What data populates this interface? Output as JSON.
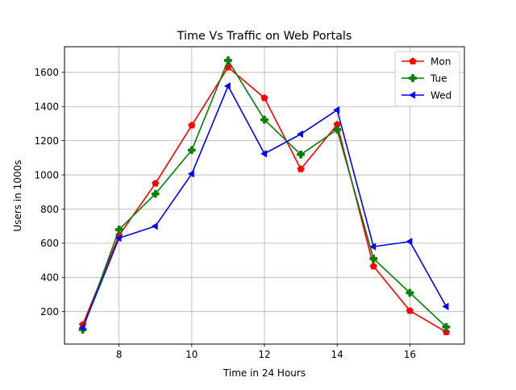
{
  "chart_data": {
    "type": "line",
    "title": "Time Vs Traffic on Web Portals",
    "xlabel": "Time in 24 Hours",
    "ylabel": "Users in 1000s",
    "x": [
      7,
      8,
      9,
      10,
      11,
      12,
      13,
      14,
      15,
      16,
      17
    ],
    "xlim": [
      6.5,
      17.5
    ],
    "ylim": [
      10,
      1750
    ],
    "xticks": [
      8,
      10,
      12,
      14,
      16
    ],
    "yticks": [
      200,
      400,
      600,
      800,
      1000,
      1200,
      1400,
      1600
    ],
    "grid": true,
    "legend_position": "top-right",
    "series": [
      {
        "name": "Mon",
        "color": "#ff0000",
        "marker": "pentagon",
        "values": [
          123,
          645,
          950,
          1290,
          1630,
          1450,
          1034,
          1295,
          465,
          205,
          80
        ]
      },
      {
        "name": "Tue",
        "color": "#008000",
        "marker": "plus",
        "values": [
          95,
          680,
          889,
          1145,
          1670,
          1323,
          1119,
          1265,
          510,
          310,
          110
        ]
      },
      {
        "name": "Wed",
        "color": "#0000ff",
        "marker": "triangle-left",
        "values": [
          105,
          630,
          700,
          1006,
          1520,
          1124,
          1239,
          1380,
          580,
          610,
          230
        ]
      }
    ]
  }
}
